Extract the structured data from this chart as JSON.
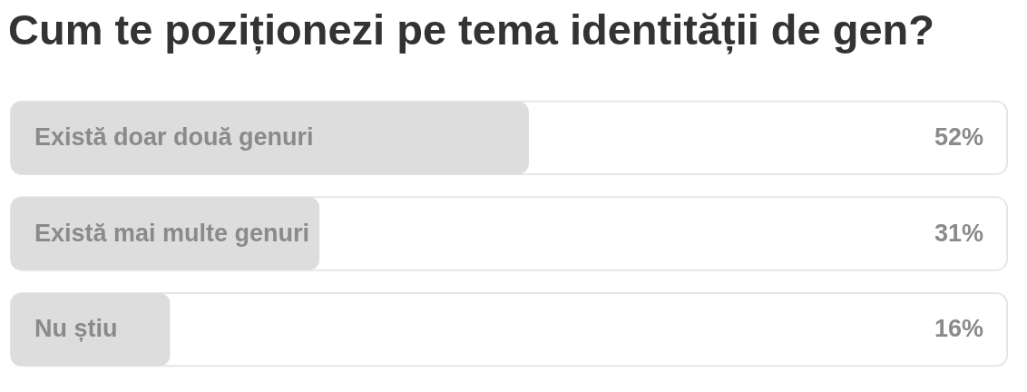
{
  "chart_data": {
    "type": "bar",
    "orientation": "horizontal",
    "title": "Cum te poziționezi pe tema identității de gen?",
    "categories": [
      "Există doar două genuri",
      "Există mai multe genuri",
      "Nu știu"
    ],
    "values": [
      52,
      31,
      16
    ],
    "value_labels": [
      "52%",
      "31%",
      "16%"
    ],
    "color": "#dddddd",
    "xlim": [
      0,
      100
    ],
    "tick_labels": false
  }
}
